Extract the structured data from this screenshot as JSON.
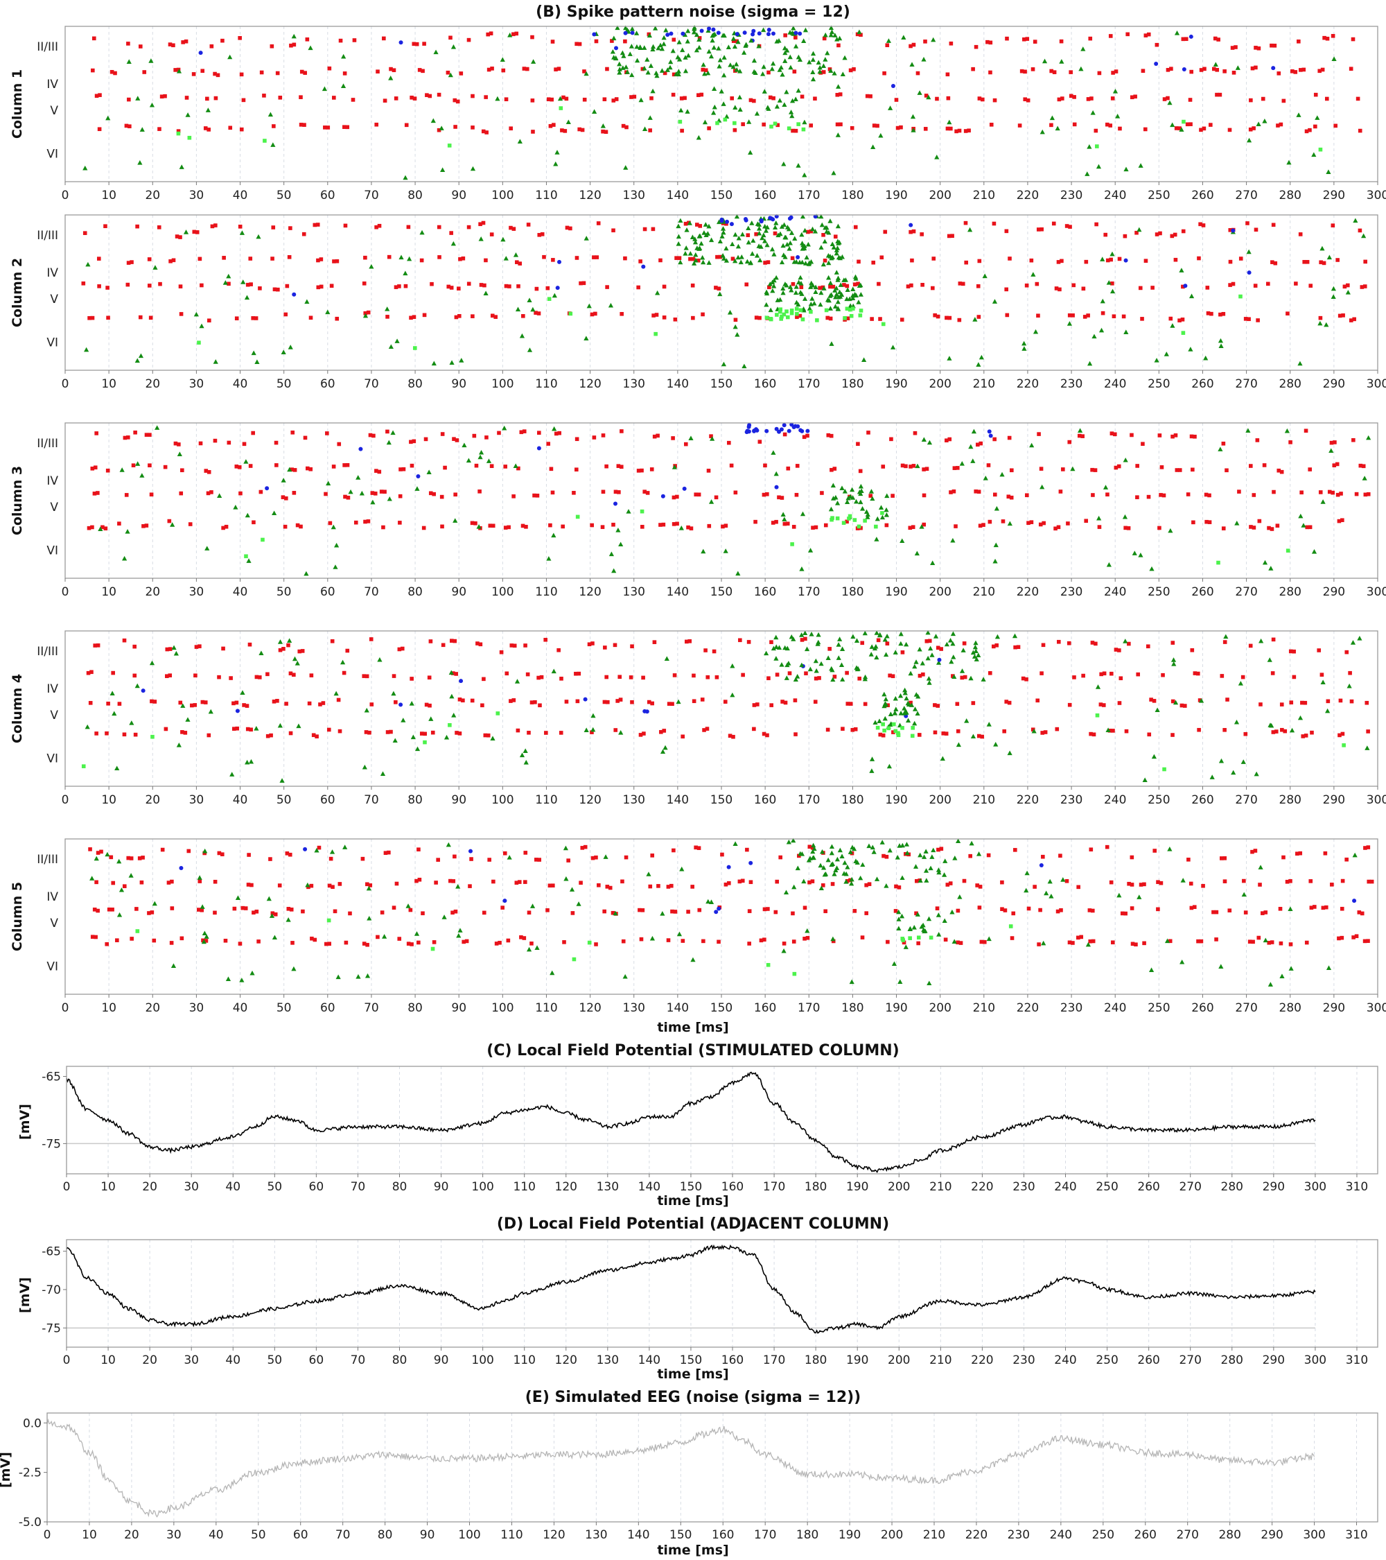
{
  "chart_data": [
    {
      "type": "scatter",
      "title": "(B) Spike pattern noise (sigma = 12)",
      "xlabel": "time [ms]",
      "xlim": [
        0,
        300
      ],
      "xticks": [
        "0",
        "10",
        "20",
        "30",
        "40",
        "50",
        "60",
        "70",
        "80",
        "90",
        "100",
        "110",
        "120",
        "130",
        "140",
        "150",
        "160",
        "170",
        "180",
        "190",
        "200",
        "210",
        "220",
        "230",
        "240",
        "250",
        "260",
        "270",
        "280",
        "290",
        "300"
      ],
      "layer_labels": [
        "II/III",
        "IV",
        "V",
        "VI"
      ],
      "grid": "vertical dashed",
      "colors": {
        "excitatory_red": "#e8121a",
        "excitatory_green": "#138c13",
        "light_green": "#4cf24c",
        "inhibitory_blue": "#1b24e0"
      },
      "panels": [
        {
          "name": "Column 1",
          "events": [
            {
              "color": "green",
              "x": [
                125,
                178
              ],
              "layer": "II/III",
              "density": 150
            },
            {
              "color": "blue",
              "x": [
                128,
                172
              ],
              "layer": "II/III",
              "density": 20
            },
            {
              "color": "green",
              "x": [
                140,
                172
              ],
              "layer": "V",
              "density": 25
            }
          ]
        },
        {
          "name": "Column 2",
          "events": [
            {
              "color": "green",
              "x": [
                140,
                178
              ],
              "layer": "II/III",
              "density": 150
            },
            {
              "color": "blue",
              "x": [
                150,
                172
              ],
              "layer": "II/III",
              "density": 20
            },
            {
              "color": "green",
              "x": [
                160,
                182
              ],
              "layer": "V",
              "density": 80
            }
          ]
        },
        {
          "name": "Column 3",
          "events": [
            {
              "color": "blue",
              "x": [
                155,
                173
              ],
              "layer": "II/III",
              "density": 25
            },
            {
              "color": "green",
              "x": [
                175,
                188
              ],
              "layer": "V",
              "density": 30
            }
          ]
        },
        {
          "name": "Column 4",
          "events": [
            {
              "color": "green",
              "x": [
                160,
                210
              ],
              "layer": "II/III",
              "density": 90
            },
            {
              "color": "green",
              "x": [
                185,
                195
              ],
              "layer": "V",
              "density": 35
            }
          ]
        },
        {
          "name": "Column 5",
          "events": [
            {
              "color": "green",
              "x": [
                165,
                205
              ],
              "layer": "II/III",
              "density": 70
            },
            {
              "color": "green",
              "x": [
                190,
                200
              ],
              "layer": "V",
              "density": 15
            }
          ]
        }
      ]
    },
    {
      "type": "line",
      "title": "(C) Local Field Potential (STIMULATED COLUMN)",
      "xlabel": "time [ms]",
      "ylabel": "[mV]",
      "xlim": [
        0,
        315
      ],
      "ylim": [
        -79.5,
        -63.5
      ],
      "xticks": [
        "0",
        "10",
        "20",
        "30",
        "40",
        "50",
        "60",
        "70",
        "80",
        "90",
        "100",
        "110",
        "120",
        "130",
        "140",
        "150",
        "160",
        "170",
        "180",
        "190",
        "200",
        "210",
        "220",
        "230",
        "240",
        "250",
        "260",
        "270",
        "280",
        "290",
        "300",
        "310"
      ],
      "yticks": [
        "-65",
        "-75"
      ],
      "reference_line": -75,
      "color": "#000000",
      "x": [
        0,
        5,
        10,
        15,
        20,
        25,
        30,
        40,
        45,
        50,
        55,
        60,
        70,
        80,
        90,
        100,
        105,
        110,
        115,
        120,
        125,
        130,
        135,
        140,
        145,
        150,
        155,
        160,
        165,
        170,
        175,
        180,
        185,
        190,
        195,
        200,
        205,
        210,
        220,
        230,
        235,
        240,
        245,
        250,
        260,
        270,
        280,
        290,
        300
      ],
      "values": [
        -65.5,
        -70,
        -71.5,
        -73.5,
        -75.5,
        -76,
        -75.5,
        -74,
        -72.5,
        -71,
        -71.5,
        -73,
        -72.5,
        -72.5,
        -73,
        -72,
        -70.5,
        -70,
        -69.5,
        -70.5,
        -71.5,
        -72.5,
        -72,
        -71,
        -71,
        -69,
        -68,
        -66,
        -64.5,
        -69,
        -72,
        -74.5,
        -77,
        -78.5,
        -79,
        -78.5,
        -77.5,
        -76,
        -74,
        -72.2,
        -71.2,
        -71,
        -71.8,
        -72.5,
        -73,
        -73,
        -72.5,
        -72.5,
        -71.5
      ]
    },
    {
      "type": "line",
      "title": "(D) Local Field Potential (ADJACENT COLUMN)",
      "xlabel": "time [ms]",
      "ylabel": "[mV]",
      "xlim": [
        0,
        315
      ],
      "ylim": [
        -77.5,
        -63.5
      ],
      "xticks": [
        "0",
        "10",
        "20",
        "30",
        "40",
        "50",
        "60",
        "70",
        "80",
        "90",
        "100",
        "110",
        "120",
        "130",
        "140",
        "150",
        "160",
        "170",
        "180",
        "190",
        "200",
        "210",
        "220",
        "230",
        "240",
        "250",
        "260",
        "270",
        "280",
        "290",
        "300",
        "310"
      ],
      "yticks": [
        "-65",
        "-70",
        "-75"
      ],
      "reference_line": -75,
      "color": "#000000",
      "x": [
        0,
        5,
        10,
        15,
        20,
        25,
        30,
        40,
        50,
        60,
        70,
        80,
        90,
        100,
        105,
        110,
        120,
        130,
        140,
        145,
        150,
        155,
        160,
        165,
        170,
        175,
        180,
        185,
        190,
        195,
        200,
        210,
        220,
        230,
        240,
        245,
        250,
        260,
        270,
        280,
        290,
        300
      ],
      "values": [
        -64.5,
        -68.5,
        -70.5,
        -72.5,
        -74,
        -74.5,
        -74.5,
        -73.5,
        -72.5,
        -71.5,
        -70.5,
        -69.5,
        -70.5,
        -72.5,
        -71.5,
        -70.5,
        -69,
        -67.5,
        -66.5,
        -66,
        -65.5,
        -64.5,
        -64.5,
        -65.5,
        -70,
        -73,
        -75.5,
        -75,
        -74.5,
        -75,
        -73.5,
        -71.5,
        -72,
        -71,
        -68.5,
        -69,
        -70,
        -71,
        -70.5,
        -71,
        -70.8,
        -70.3
      ]
    },
    {
      "type": "line",
      "title": "(E) Simulated EEG (noise (sigma = 12))",
      "xlabel": "time [ms]",
      "ylabel": "[mV]",
      "xlim": [
        0,
        315
      ],
      "ylim": [
        -5.0,
        0.5
      ],
      "xticks": [
        "0",
        "10",
        "20",
        "30",
        "40",
        "50",
        "60",
        "70",
        "80",
        "90",
        "100",
        "110",
        "120",
        "130",
        "140",
        "150",
        "160",
        "170",
        "180",
        "190",
        "200",
        "210",
        "220",
        "230",
        "240",
        "250",
        "260",
        "270",
        "280",
        "290",
        "300",
        "310"
      ],
      "yticks": [
        "0.0",
        "-2.5",
        "-5.0"
      ],
      "color": "#b5b5b5",
      "x": [
        0,
        5,
        10,
        15,
        20,
        25,
        30,
        40,
        50,
        60,
        70,
        80,
        90,
        100,
        110,
        120,
        130,
        140,
        150,
        155,
        160,
        165,
        170,
        180,
        190,
        200,
        210,
        220,
        230,
        240,
        250,
        260,
        270,
        280,
        290,
        300
      ],
      "values": [
        0.0,
        -0.2,
        -1.5,
        -3.0,
        -4.0,
        -4.6,
        -4.3,
        -3.4,
        -2.5,
        -2.0,
        -1.8,
        -1.6,
        -1.8,
        -1.8,
        -1.7,
        -1.6,
        -1.6,
        -1.4,
        -1.0,
        -0.6,
        -0.3,
        -0.9,
        -1.6,
        -2.6,
        -2.6,
        -2.8,
        -2.9,
        -2.4,
        -1.6,
        -0.8,
        -1.1,
        -1.5,
        -1.6,
        -1.9,
        -2.0,
        -1.7
      ]
    }
  ]
}
